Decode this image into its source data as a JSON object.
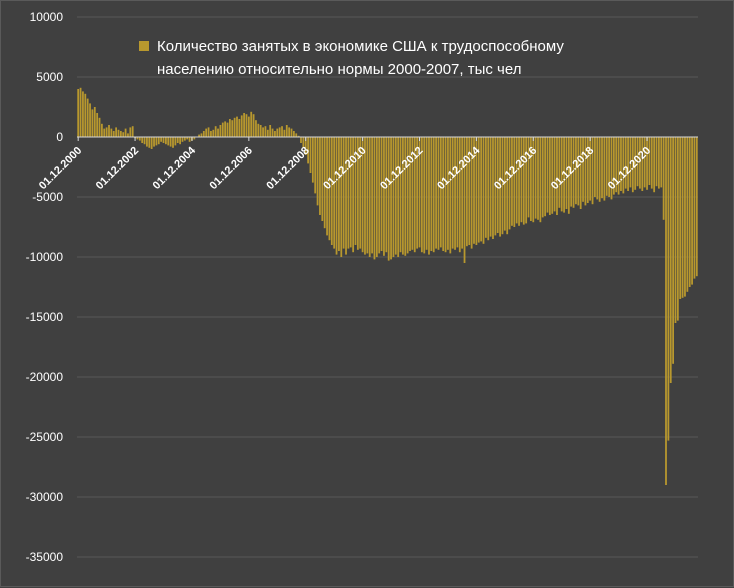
{
  "chart_data": {
    "type": "bar",
    "title": "",
    "xlabel": "",
    "ylabel": "",
    "ylim": [
      -35000,
      10000
    ],
    "yticks": [
      10000,
      5000,
      0,
      -5000,
      -10000,
      -15000,
      -20000,
      -25000,
      -30000,
      -35000
    ],
    "ytick_labels": [
      "10000",
      "5000",
      "0",
      "-5000",
      "-10000",
      "-15000",
      "-20000",
      "-25000",
      "-30000",
      "-35000"
    ],
    "xtick_labels": [
      "01.12.2000",
      "01.12.2002",
      "01.12.2004",
      "01.12.2006",
      "01.12.2008",
      "01.12.2010",
      "01.12.2012",
      "01.12.2014",
      "01.12.2016",
      "01.12.2018",
      "01.12.2020"
    ],
    "xtick_indices": [
      0,
      24,
      48,
      72,
      96,
      120,
      144,
      168,
      192,
      216,
      240
    ],
    "grid": "horizontal",
    "legend_position": "top",
    "bar_color": "#b8982e",
    "series": [
      {
        "name": "Количество занятых в экономике США к трудоспособному населению относительно нормы 2000-2007, тыс чел",
        "values": [
          4000,
          4100,
          3800,
          3600,
          3200,
          2800,
          2300,
          2500,
          2000,
          1600,
          1100,
          700,
          800,
          1000,
          700,
          500,
          800,
          600,
          500,
          400,
          700,
          300,
          800,
          900,
          -100,
          -200,
          -300,
          -500,
          -600,
          -800,
          -900,
          -1000,
          -800,
          -700,
          -600,
          -400,
          -500,
          -600,
          -700,
          -800,
          -900,
          -700,
          -500,
          -600,
          -400,
          -300,
          -200,
          -400,
          -300,
          -200,
          0,
          200,
          300,
          500,
          700,
          800,
          500,
          600,
          900,
          700,
          1000,
          1200,
          1300,
          1200,
          1500,
          1400,
          1600,
          1700,
          1500,
          1800,
          2000,
          1900,
          1700,
          2100,
          1900,
          1400,
          1100,
          1000,
          800,
          900,
          600,
          1000,
          700,
          500,
          700,
          800,
          900,
          600,
          1000,
          800,
          700,
          500,
          300,
          100,
          -500,
          -900,
          -1500,
          -2200,
          -3000,
          -3800,
          -4700,
          -5700,
          -6500,
          -7000,
          -7600,
          -8200,
          -8600,
          -9000,
          -9300,
          -9800,
          -9500,
          -10000,
          -9300,
          -9800,
          -9300,
          -9200,
          -9600,
          -9000,
          -9400,
          -9300,
          -9600,
          -9800,
          -9700,
          -10000,
          -9700,
          -10200,
          -10000,
          -9700,
          -9500,
          -9900,
          -9600,
          -10300,
          -10200,
          -10000,
          -9800,
          -10000,
          -9600,
          -9800,
          -9900,
          -9700,
          -9500,
          -9400,
          -9600,
          -9300,
          -9200,
          -9600,
          -9700,
          -9400,
          -9800,
          -9500,
          -9600,
          -9300,
          -9400,
          -9200,
          -9500,
          -9600,
          -9400,
          -9700,
          -9300,
          -9400,
          -9200,
          -9600,
          -9300,
          -10500,
          -9100,
          -9000,
          -9300,
          -8900,
          -9000,
          -8800,
          -8700,
          -8900,
          -8400,
          -8600,
          -8300,
          -8500,
          -8200,
          -8000,
          -8300,
          -8100,
          -7800,
          -8100,
          -7700,
          -7400,
          -7500,
          -7200,
          -7400,
          -7100,
          -7300,
          -7200,
          -6700,
          -7000,
          -7100,
          -6800,
          -6900,
          -7100,
          -6700,
          -6600,
          -6300,
          -6500,
          -6400,
          -6200,
          -6500,
          -5900,
          -6200,
          -6300,
          -6000,
          -6400,
          -5800,
          -5900,
          -5600,
          -5700,
          -6000,
          -5400,
          -5700,
          -5500,
          -5300,
          -5600,
          -5000,
          -5200,
          -5400,
          -5100,
          -5300,
          -4900,
          -5000,
          -5200,
          -4800,
          -4600,
          -4800,
          -4500,
          -4700,
          -4300,
          -4500,
          -4200,
          -4600,
          -4400,
          -4100,
          -4300,
          -4500,
          -4200,
          -4400,
          -4000,
          -4300,
          -4600,
          -4100,
          -4300,
          -4200,
          -6900,
          -29000,
          -25300,
          -20500,
          -18900,
          -15500,
          -15300,
          -13500,
          -13400,
          -13300,
          -12900,
          -12500,
          -12300,
          -11800,
          -11600
        ]
      }
    ]
  }
}
